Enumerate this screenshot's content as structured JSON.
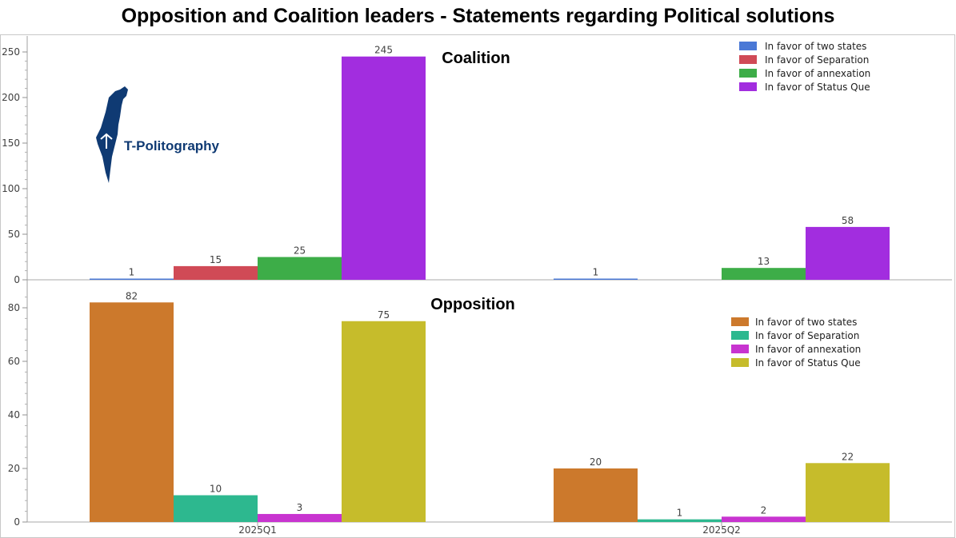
{
  "title": "Opposition and Coalition leaders - Statements regarding Political solutions",
  "logo": {
    "text": "T-Politography",
    "icon": "israel-map-icon",
    "color": "#0f3a73"
  },
  "chart_data": [
    {
      "type": "bar",
      "title": "Coalition",
      "categories": [
        "2025Q1",
        "2025Q2"
      ],
      "ylim": [
        0,
        250
      ],
      "yticks": [
        0,
        50,
        100,
        150,
        200,
        250
      ],
      "legend_position": "top-right",
      "series": [
        {
          "name": "In favor of two states",
          "color": "#4a78d6",
          "values": [
            1,
            1
          ]
        },
        {
          "name": "In favor of Separation",
          "color": "#d04a56",
          "values": [
            15,
            null
          ]
        },
        {
          "name": "In favor of annexation",
          "color": "#3dad48",
          "values": [
            25,
            13
          ]
        },
        {
          "name": "In favor of Status Que",
          "color": "#a22ddf",
          "values": [
            245,
            58
          ]
        }
      ]
    },
    {
      "type": "bar",
      "title": "Opposition",
      "categories": [
        "2025Q1",
        "2025Q2"
      ],
      "ylim": [
        0,
        85
      ],
      "yticks": [
        0,
        20,
        40,
        60,
        80
      ],
      "legend_position": "right",
      "series": [
        {
          "name": "In favor of two states",
          "color": "#cc792c",
          "values": [
            82,
            20
          ]
        },
        {
          "name": "In favor of Separation",
          "color": "#2db88f",
          "values": [
            10,
            1
          ]
        },
        {
          "name": "In favor of annexation",
          "color": "#c834d0",
          "values": [
            3,
            2
          ]
        },
        {
          "name": "In favor of Status Que",
          "color": "#c6bc2b",
          "values": [
            75,
            22
          ]
        }
      ]
    }
  ]
}
